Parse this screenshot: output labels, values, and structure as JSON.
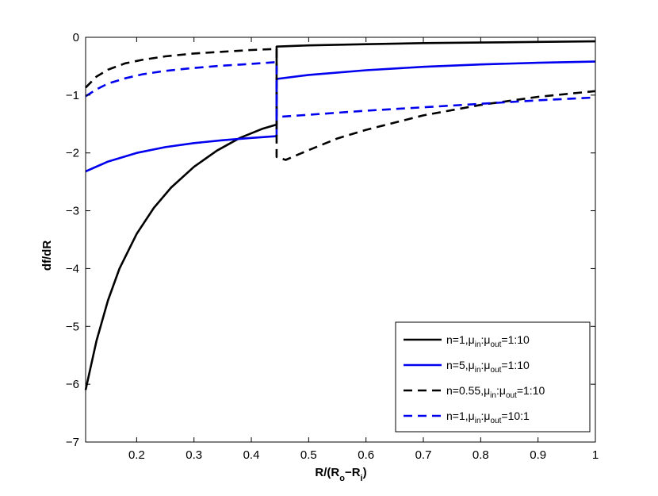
{
  "chart_data": {
    "type": "line",
    "xlabel": "R/(R",
    "xlabel_sub1": "o",
    "xlabel_mid": "−R",
    "xlabel_sub2": "i",
    "xlabel_end": ")",
    "ylabel": "df/dR",
    "xlim": [
      0.111,
      1.0
    ],
    "ylim": [
      -7,
      0
    ],
    "x_ticks": [
      0.2,
      0.3,
      0.4,
      0.5,
      0.6,
      0.7,
      0.8,
      0.9,
      1
    ],
    "x_tick_labels": [
      "0.2",
      "0.3",
      "0.4",
      "0.5",
      "0.6",
      "0.7",
      "0.8",
      "0.9",
      "1"
    ],
    "y_ticks": [
      0,
      -1,
      -2,
      -3,
      -4,
      -5,
      -6,
      -7
    ],
    "y_tick_labels": [
      "0",
      "−1",
      "−2",
      "−3",
      "−4",
      "−5",
      "−6",
      "−7"
    ],
    "grid": false,
    "legend_position": "bottom-right",
    "discontinuity_x": 0.444,
    "series": [
      {
        "name_parts": [
          "n=1,μ",
          "in",
          ":μ",
          "out",
          "=1:10"
        ],
        "color": "#000000",
        "dash": "solid",
        "x": [
          0.111,
          0.13,
          0.15,
          0.17,
          0.2,
          0.23,
          0.26,
          0.3,
          0.34,
          0.38,
          0.42,
          0.444,
          0.444,
          0.5,
          0.6,
          0.7,
          0.8,
          0.9,
          1.0
        ],
        "y": [
          -6.1,
          -5.25,
          -4.55,
          -4.0,
          -3.4,
          -2.95,
          -2.6,
          -2.24,
          -1.96,
          -1.74,
          -1.58,
          -1.51,
          -0.16,
          -0.14,
          -0.12,
          -0.1,
          -0.09,
          -0.08,
          -0.07
        ]
      },
      {
        "name_parts": [
          "n=5,μ",
          "in",
          ":μ",
          "out",
          "=1:10"
        ],
        "color": "#0000ee",
        "dash": "solid",
        "x": [
          0.111,
          0.15,
          0.2,
          0.25,
          0.3,
          0.35,
          0.4,
          0.444,
          0.444,
          0.5,
          0.6,
          0.7,
          0.8,
          0.9,
          1.0
        ],
        "y": [
          -2.32,
          -2.15,
          -2.0,
          -1.9,
          -1.83,
          -1.78,
          -1.74,
          -1.71,
          -0.72,
          -0.65,
          -0.57,
          -0.51,
          -0.47,
          -0.44,
          -0.42
        ]
      },
      {
        "name_parts": [
          "n=0.55,μ",
          "in",
          ":μ",
          "out",
          "=1:10"
        ],
        "color": "#000000",
        "dash": "dashed",
        "x": [
          0.111,
          0.13,
          0.15,
          0.18,
          0.21,
          0.25,
          0.3,
          0.35,
          0.4,
          0.444,
          0.444,
          0.46,
          0.5,
          0.55,
          0.6,
          0.7,
          0.8,
          0.9,
          1.0
        ],
        "y": [
          -0.87,
          -0.68,
          -0.56,
          -0.45,
          -0.39,
          -0.33,
          -0.28,
          -0.25,
          -0.22,
          -0.2,
          -2.07,
          -2.12,
          -1.95,
          -1.75,
          -1.6,
          -1.35,
          -1.17,
          -1.03,
          -0.93
        ]
      },
      {
        "name_parts": [
          "n=1,μ",
          "in",
          ":μ",
          "out",
          "=10:1"
        ],
        "color": "#0000ee",
        "dash": "dashed",
        "x": [
          0.111,
          0.13,
          0.15,
          0.18,
          0.21,
          0.25,
          0.3,
          0.35,
          0.4,
          0.444,
          0.444,
          0.5,
          0.6,
          0.7,
          0.8,
          0.9,
          1.0
        ],
        "y": [
          -1.02,
          -0.9,
          -0.8,
          -0.71,
          -0.64,
          -0.58,
          -0.53,
          -0.49,
          -0.46,
          -0.43,
          -1.38,
          -1.34,
          -1.27,
          -1.21,
          -1.15,
          -1.09,
          -1.04
        ]
      }
    ]
  }
}
